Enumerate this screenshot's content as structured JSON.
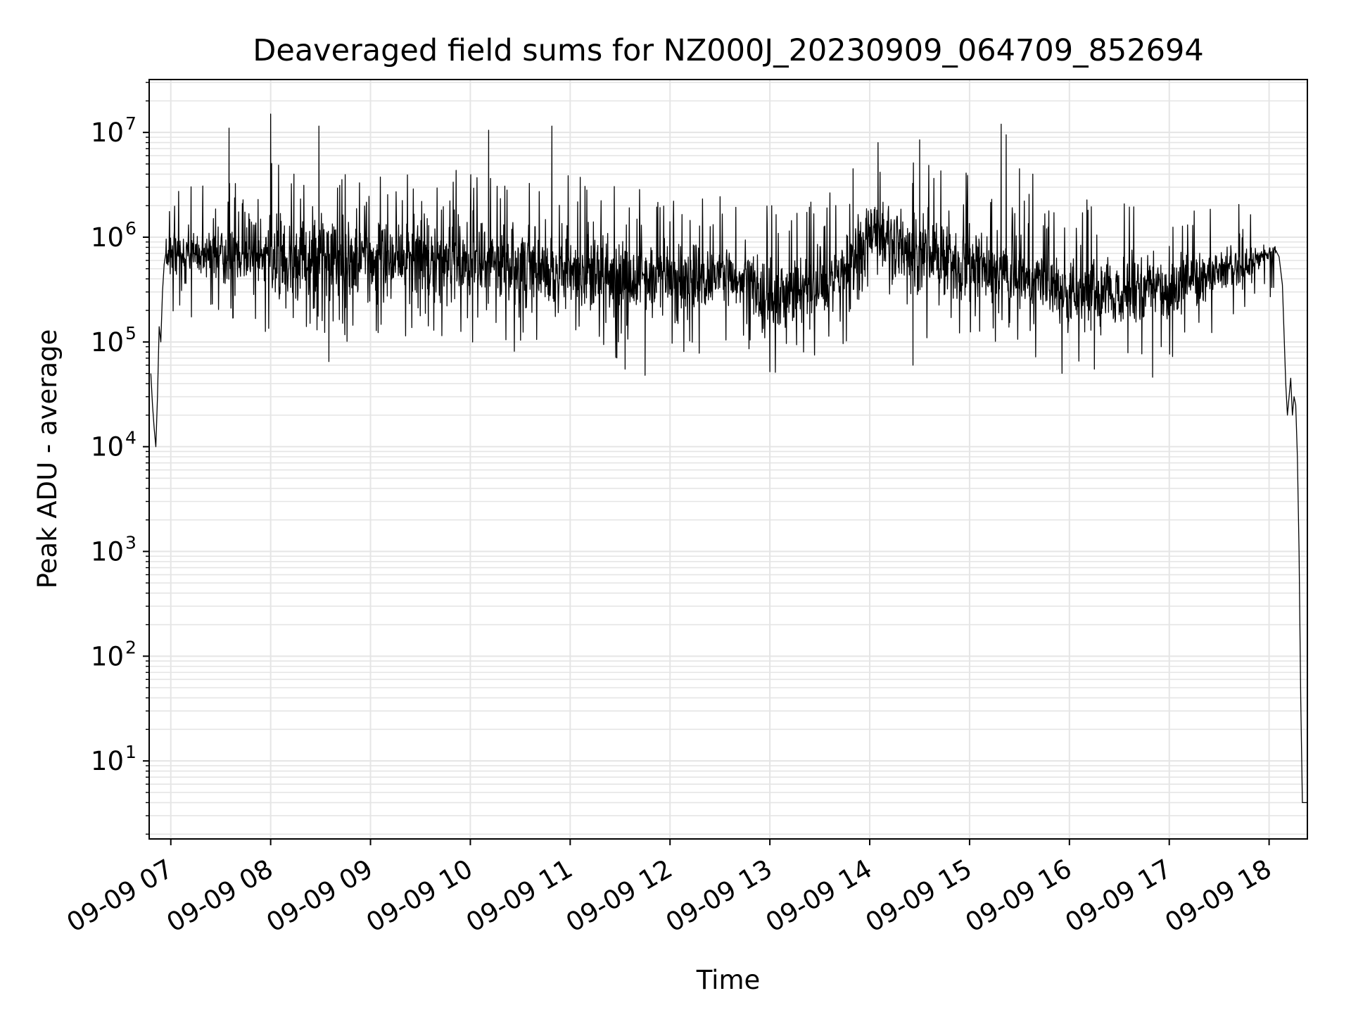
{
  "chart_data": {
    "type": "line",
    "title": "Deaveraged field sums for NZ000J_20230909_064709_852694",
    "xlabel": "Time",
    "ylabel": "Peak ADU - average",
    "x_scale": "time",
    "y_scale": "log",
    "xlim": [
      "2023-09-09 06:47",
      "2023-09-09 18:23"
    ],
    "ylim": [
      1.8,
      32000000
    ],
    "grid": true,
    "legend": "none",
    "line_color": "#000000",
    "grid_color": "#e5e5e5",
    "x_ticks": [
      {
        "value": "2023-09-09 07:00",
        "label": "09-09 07"
      },
      {
        "value": "2023-09-09 08:00",
        "label": "09-09 08"
      },
      {
        "value": "2023-09-09 09:00",
        "label": "09-09 09"
      },
      {
        "value": "2023-09-09 10:00",
        "label": "09-09 10"
      },
      {
        "value": "2023-09-09 11:00",
        "label": "09-09 11"
      },
      {
        "value": "2023-09-09 12:00",
        "label": "09-09 12"
      },
      {
        "value": "2023-09-09 13:00",
        "label": "09-09 13"
      },
      {
        "value": "2023-09-09 14:00",
        "label": "09-09 14"
      },
      {
        "value": "2023-09-09 15:00",
        "label": "09-09 15"
      },
      {
        "value": "2023-09-09 16:00",
        "label": "09-09 16"
      },
      {
        "value": "2023-09-09 17:00",
        "label": "09-09 17"
      },
      {
        "value": "2023-09-09 18:00",
        "label": "09-09 18"
      }
    ],
    "y_ticks": [
      {
        "value": 10,
        "base": "10",
        "exp": "1"
      },
      {
        "value": 100,
        "base": "10",
        "exp": "2"
      },
      {
        "value": 1000,
        "base": "10",
        "exp": "3"
      },
      {
        "value": 10000,
        "base": "10",
        "exp": "4"
      },
      {
        "value": 100000,
        "base": "10",
        "exp": "5"
      },
      {
        "value": 1000000,
        "base": "10",
        "exp": "6"
      },
      {
        "value": 10000000,
        "base": "10",
        "exp": "7"
      }
    ],
    "series": [
      {
        "noise_band": [
          {
            "x": "2023-09-09 06:57",
            "low": 400000,
            "high": 1200000
          },
          {
            "x": "2023-09-09 08:00",
            "low": 250000,
            "high": 2000000
          },
          {
            "x": "2023-09-09 09:00",
            "low": 200000,
            "high": 1800000
          },
          {
            "x": "2023-09-09 10:00",
            "low": 200000,
            "high": 1600000
          },
          {
            "x": "2023-09-09 11:00",
            "low": 150000,
            "high": 1400000
          },
          {
            "x": "2023-09-09 12:00",
            "low": 150000,
            "high": 1000000
          },
          {
            "x": "2023-09-09 12:45",
            "low": 200000,
            "high": 900000
          },
          {
            "x": "2023-09-09 13:00",
            "low": 100000,
            "high": 700000
          },
          {
            "x": "2023-09-09 13:45",
            "low": 150000,
            "high": 1200000
          },
          {
            "x": "2023-09-09 14:00",
            "low": 400000,
            "high": 3000000
          },
          {
            "x": "2023-09-09 14:30",
            "low": 250000,
            "high": 2000000
          },
          {
            "x": "2023-09-09 15:00",
            "low": 200000,
            "high": 1500000
          },
          {
            "x": "2023-09-09 15:45",
            "low": 130000,
            "high": 900000
          },
          {
            "x": "2023-09-09 16:00",
            "low": 100000,
            "high": 800000
          },
          {
            "x": "2023-09-09 17:00",
            "low": 130000,
            "high": 900000
          },
          {
            "x": "2023-09-09 17:45",
            "low": 350000,
            "high": 800000
          },
          {
            "x": "2023-09-09 18:00",
            "low": 600000,
            "high": 900000
          }
        ],
        "spikes": [
          {
            "x": "2023-09-09 07:35",
            "y": 11000000
          },
          {
            "x": "2023-09-09 08:00",
            "y": 15000000
          },
          {
            "x": "2023-09-09 08:14",
            "y": 4000000
          },
          {
            "x": "2023-09-09 08:29",
            "y": 11500000
          },
          {
            "x": "2023-09-09 10:11",
            "y": 10500000
          },
          {
            "x": "2023-09-09 10:49",
            "y": 11500000
          },
          {
            "x": "2023-09-09 12:02",
            "y": 1500000
          },
          {
            "x": "2023-09-09 13:50",
            "y": 4500000
          },
          {
            "x": "2023-09-09 14:05",
            "y": 8000000
          },
          {
            "x": "2023-09-09 14:30",
            "y": 8500000
          },
          {
            "x": "2023-09-09 15:19",
            "y": 12000000
          },
          {
            "x": "2023-09-09 15:22",
            "y": 9500000
          },
          {
            "x": "2023-09-09 15:30",
            "y": 4500000
          },
          {
            "x": "2023-09-09 15:38",
            "y": 4000000
          }
        ],
        "dips": [
          {
            "x": "2023-09-09 08:35",
            "y": 65000
          },
          {
            "x": "2023-09-09 11:33",
            "y": 55000
          },
          {
            "x": "2023-09-09 11:45",
            "y": 48000
          },
          {
            "x": "2023-09-09 13:00",
            "y": 52000
          },
          {
            "x": "2023-09-09 14:26",
            "y": 60000
          },
          {
            "x": "2023-09-09 16:15",
            "y": 55000
          },
          {
            "x": "2023-09-09 16:50",
            "y": 46000
          }
        ],
        "start_ramp": [
          {
            "x": "2023-09-09 06:48",
            "y": 50000
          },
          {
            "x": "2023-09-09 06:49",
            "y": 25000
          },
          {
            "x": "2023-09-09 06:50",
            "y": 15000
          },
          {
            "x": "2023-09-09 06:51",
            "y": 10000
          },
          {
            "x": "2023-09-09 06:52",
            "y": 30000
          },
          {
            "x": "2023-09-09 06:53",
            "y": 140000
          },
          {
            "x": "2023-09-09 06:54",
            "y": 100000
          },
          {
            "x": "2023-09-09 06:55",
            "y": 300000
          },
          {
            "x": "2023-09-09 06:56",
            "y": 550000
          },
          {
            "x": "2023-09-09 06:57",
            "y": 700000
          }
        ],
        "end_tail": [
          {
            "x": "2023-09-09 18:04",
            "y": 750000
          },
          {
            "x": "2023-09-09 18:06",
            "y": 650000
          },
          {
            "x": "2023-09-09 18:08",
            "y": 350000
          },
          {
            "x": "2023-09-09 18:10",
            "y": 40000
          },
          {
            "x": "2023-09-09 18:11",
            "y": 20000
          },
          {
            "x": "2023-09-09 18:12",
            "y": 30000
          },
          {
            "x": "2023-09-09 18:13",
            "y": 45000
          },
          {
            "x": "2023-09-09 18:14",
            "y": 20000
          },
          {
            "x": "2023-09-09 18:15",
            "y": 30000
          },
          {
            "x": "2023-09-09 18:16",
            "y": 25000
          },
          {
            "x": "2023-09-09 18:17",
            "y": 8000
          },
          {
            "x": "2023-09-09 18:18",
            "y": 1000
          },
          {
            "x": "2023-09-09 18:19",
            "y": 40
          },
          {
            "x": "2023-09-09 18:20",
            "y": 4
          },
          {
            "x": "2023-09-09 18:23",
            "y": 4
          }
        ]
      }
    ]
  }
}
